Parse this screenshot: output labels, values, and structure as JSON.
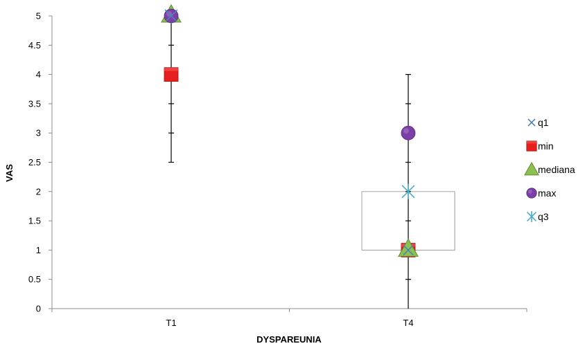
{
  "chart_data": {
    "type": "scatter",
    "title": "",
    "xlabel": "DYSPAREUNIA",
    "ylabel": "VAS",
    "categories": [
      "T1",
      "T4"
    ],
    "ylim": [
      0,
      5
    ],
    "yticks": [
      "0",
      "0.5",
      "1",
      "1.5",
      "2",
      "2.5",
      "3",
      "3.5",
      "4",
      "4.5",
      "5"
    ],
    "grid": false,
    "legend_position": "right",
    "series": [
      {
        "name": "q1",
        "marker": "x",
        "color": "#4f81bd",
        "values": [
          5,
          1
        ]
      },
      {
        "name": "min",
        "marker": "square",
        "color": "#e61e1e",
        "values": [
          4,
          1
        ]
      },
      {
        "name": "mediana",
        "marker": "triangle",
        "color": "#8cc152",
        "values": [
          5,
          1
        ]
      },
      {
        "name": "max",
        "marker": "circle",
        "color": "#7b3fa6",
        "values": [
          5,
          3
        ]
      },
      {
        "name": "q3",
        "marker": "asterisk",
        "color": "#4bacc6",
        "values": [
          5,
          2
        ]
      }
    ],
    "error_bars": [
      {
        "category": "T1",
        "low": 2.5,
        "high": 5
      },
      {
        "category": "T4",
        "low": 0,
        "high": 4
      }
    ],
    "boxes": [
      {
        "category": "T4",
        "low": 1,
        "high": 2
      }
    ]
  }
}
